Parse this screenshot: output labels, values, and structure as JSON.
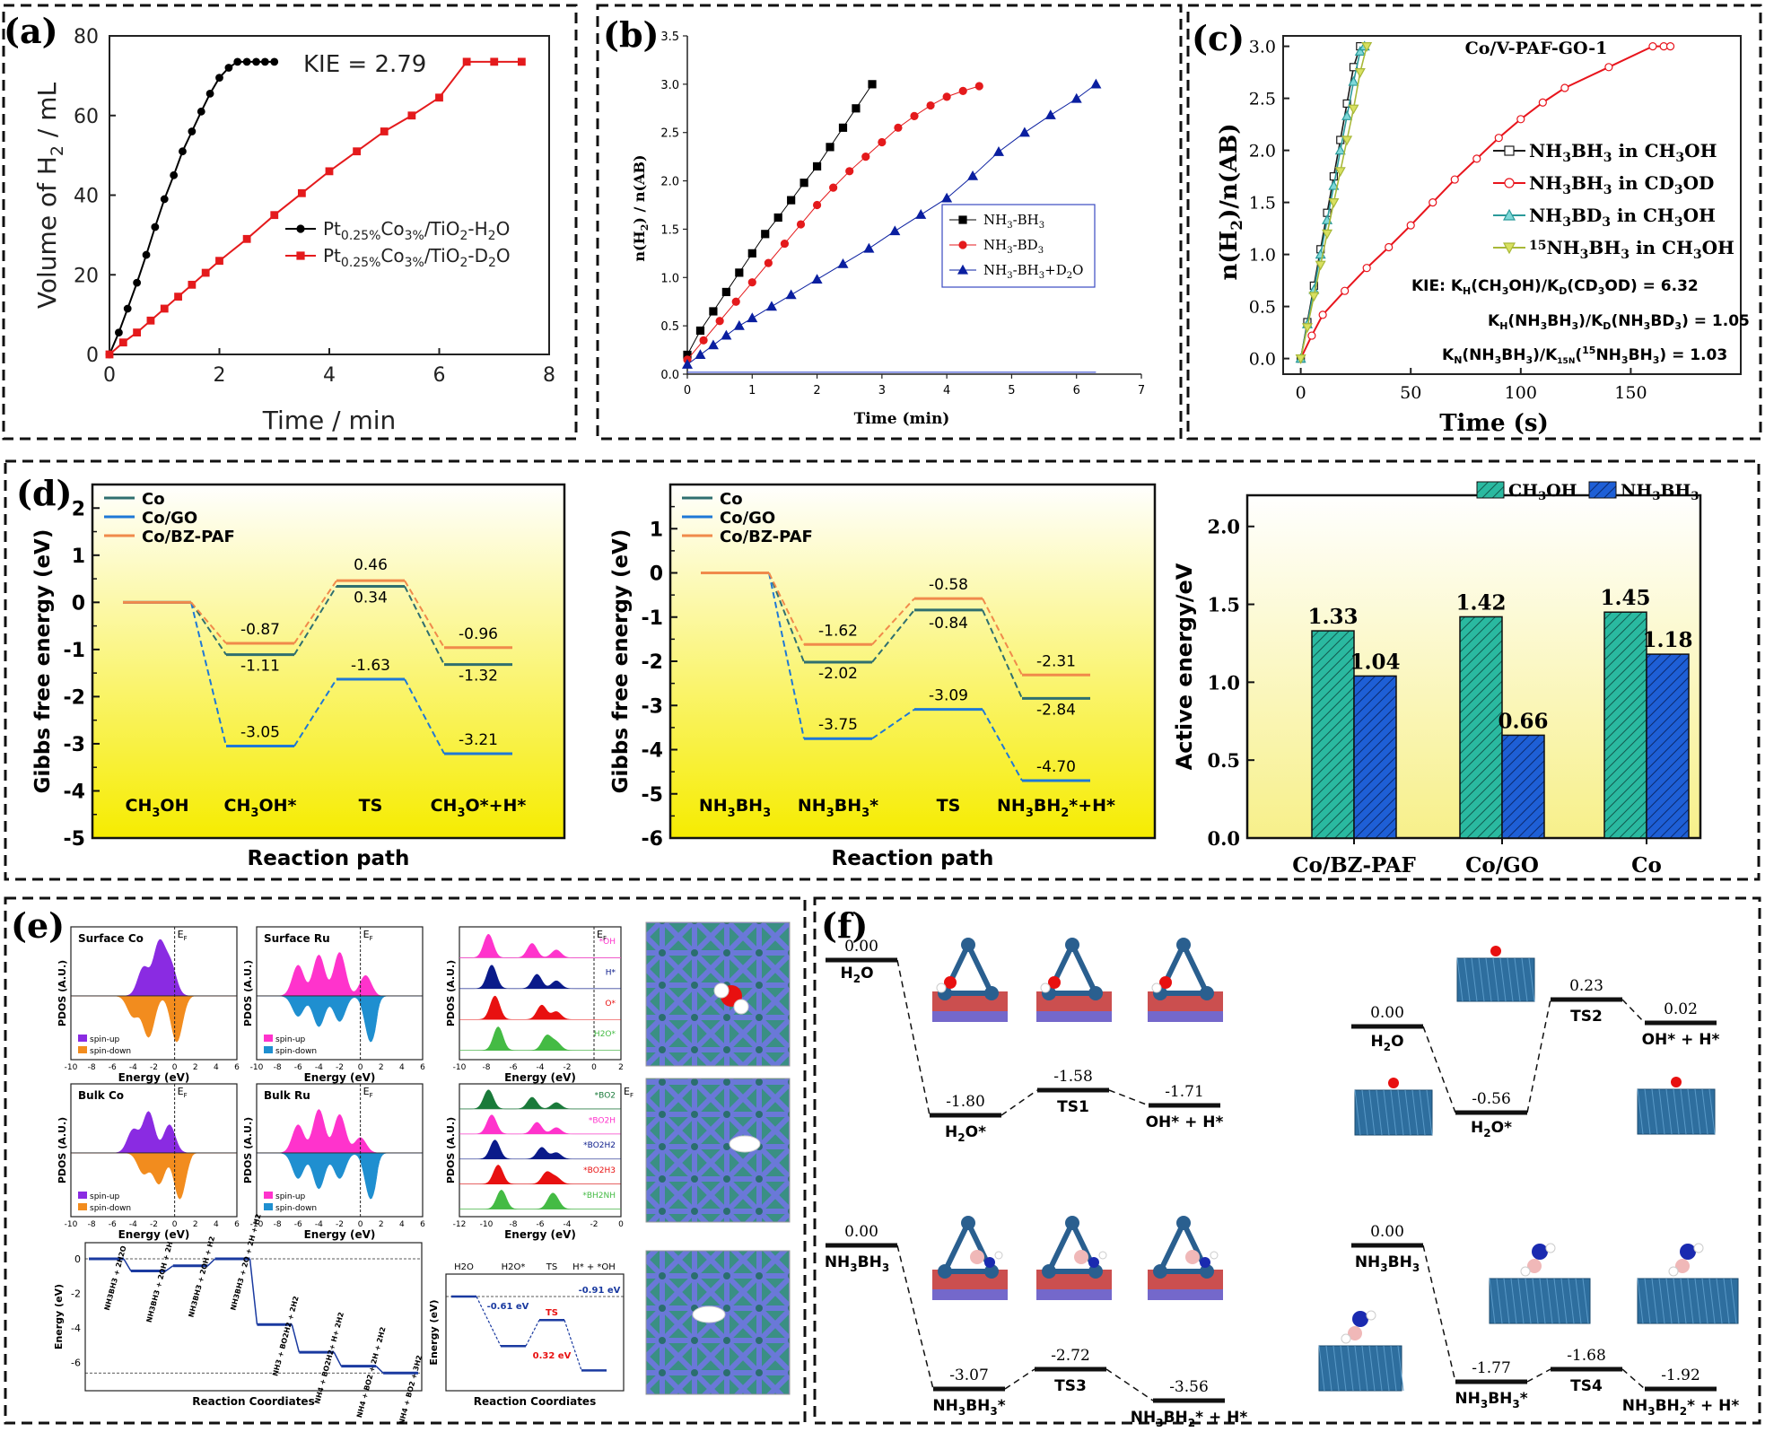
{
  "colors": {
    "black": "#000000",
    "red": "#e41a1c",
    "blue": "#0a1fa0",
    "teal": "#2a6e6e",
    "co": "#2f6f6f",
    "cogo": "#1e78d6",
    "cobz": "#f08a4b",
    "yellow_top": "#ffffff",
    "yellow_bot": "#f8ef00",
    "bar_ch3oh": "#2ab9a0",
    "bar_nh3bh3": "#1e5fd6",
    "purple": "#8a2be2",
    "orange": "#f28c1e",
    "magenta": "#ff33cc",
    "skyblue": "#1f8fd0",
    "green": "#44bb44"
  },
  "panels": {
    "a": {
      "label": "(a)"
    },
    "b": {
      "label": "(b)"
    },
    "c": {
      "label": "(c)"
    },
    "d": {
      "label": "(d)"
    },
    "e": {
      "label": "(e)"
    },
    "f": {
      "label": "(f)"
    }
  },
  "chart_data": [
    {
      "id": "a",
      "type": "line",
      "xlabel": "Time / min",
      "ylabel": "Volume of H2 / mL",
      "ylabel_parts": {
        "pre": "Volume of H",
        "sub": "2",
        "post": " / mL"
      },
      "xlim": [
        0,
        8
      ],
      "ylim": [
        0,
        80
      ],
      "xticks": [
        "0",
        "2",
        "4",
        "6",
        "8"
      ],
      "yticks": [
        "0",
        "20",
        "40",
        "60",
        "80"
      ],
      "annotation": "KIE = 2.79",
      "series": [
        {
          "name": "Pt0.25%Co3%/TiO2-H2O",
          "legend": {
            "pre": "Pt",
            "s1": "0.25%",
            "mid": "Co",
            "s2": "3%",
            "post": "/TiO",
            "s3": "2",
            "end": "-H",
            "s4": "2",
            "tail": "O"
          },
          "marker": "circle",
          "x": [
            0,
            0.17,
            0.33,
            0.5,
            0.67,
            0.83,
            1.0,
            1.17,
            1.33,
            1.5,
            1.67,
            1.83,
            2.0,
            2.17,
            2.33,
            2.5,
            2.67,
            2.83,
            3.0
          ],
          "y": [
            0,
            5.5,
            11.5,
            18,
            25,
            32,
            39,
            45,
            51,
            56,
            61,
            65.5,
            69.5,
            72,
            73.5,
            73.5,
            73.5,
            73.5,
            73.5
          ]
        },
        {
          "name": "Pt0.25%Co3%/TiO2-D2O",
          "legend": {
            "pre": "Pt",
            "s1": "0.25%",
            "mid": "Co",
            "s2": "3%",
            "post": "/TiO",
            "s3": "2",
            "end": "-D",
            "s4": "2",
            "tail": "O"
          },
          "marker": "square",
          "x": [
            0,
            0.25,
            0.5,
            0.75,
            1.0,
            1.25,
            1.5,
            1.75,
            2.0,
            2.5,
            3.0,
            3.5,
            4.0,
            4.5,
            5.0,
            5.5,
            6.0,
            6.5,
            7.0,
            7.5
          ],
          "y": [
            0,
            3,
            5.5,
            8.5,
            11.5,
            14.5,
            17.5,
            20.5,
            23.5,
            29,
            35,
            40.5,
            46,
            51,
            56,
            60,
            64.5,
            73.5,
            73.5,
            73.5
          ]
        }
      ]
    },
    {
      "id": "b",
      "type": "line",
      "xlabel": "Time (min)",
      "ylabel": "n(H2) / n(AB)",
      "xlim": [
        0,
        7
      ],
      "ylim": [
        0,
        3.5
      ],
      "xticks": [
        "0",
        "1",
        "2",
        "3",
        "4",
        "5",
        "6",
        "7"
      ],
      "yticks": [
        "0.0",
        "0.5",
        "1.0",
        "1.5",
        "2.0",
        "2.5",
        "3.0",
        "3.5"
      ],
      "series": [
        {
          "name": "NH3-BH3",
          "legend": {
            "a": "NH",
            "s": "3",
            "b": "-BH",
            "s2": "3"
          },
          "marker": "square",
          "x": [
            0,
            0.2,
            0.4,
            0.6,
            0.8,
            1.0,
            1.2,
            1.4,
            1.6,
            1.8,
            2.0,
            2.2,
            2.4,
            2.6,
            2.85
          ],
          "y": [
            0.2,
            0.45,
            0.65,
            0.85,
            1.05,
            1.25,
            1.45,
            1.62,
            1.8,
            1.98,
            2.15,
            2.35,
            2.55,
            2.75,
            3.0
          ]
        },
        {
          "name": "NH3-BD3",
          "legend": {
            "a": "NH",
            "s": "3",
            "b": "-BD",
            "s2": "3"
          },
          "marker": "circle",
          "x": [
            0,
            0.25,
            0.5,
            0.75,
            1.0,
            1.25,
            1.5,
            1.75,
            2.0,
            2.25,
            2.5,
            2.75,
            3.0,
            3.25,
            3.5,
            3.75,
            4.0,
            4.25,
            4.5
          ],
          "y": [
            0.15,
            0.35,
            0.55,
            0.75,
            0.95,
            1.15,
            1.35,
            1.55,
            1.75,
            1.93,
            2.1,
            2.25,
            2.4,
            2.55,
            2.67,
            2.78,
            2.87,
            2.93,
            2.98
          ]
        },
        {
          "name": "NH3-BH3+D2O",
          "legend": {
            "a": "NH",
            "s": "3",
            "b": "-BH",
            "s2": "3",
            "c": "+D",
            "s3": "2",
            "d": "O"
          },
          "marker": "triangle",
          "x": [
            0,
            0.2,
            0.4,
            0.6,
            0.8,
            1.0,
            1.3,
            1.6,
            2.0,
            2.4,
            2.8,
            3.2,
            3.6,
            4.0,
            4.4,
            4.8,
            5.2,
            5.6,
            6.0,
            6.3
          ],
          "y": [
            0.1,
            0.2,
            0.3,
            0.4,
            0.5,
            0.58,
            0.7,
            0.82,
            0.98,
            1.14,
            1.3,
            1.48,
            1.65,
            1.82,
            2.05,
            2.3,
            2.5,
            2.68,
            2.85,
            3.0
          ]
        }
      ]
    },
    {
      "id": "c",
      "type": "line",
      "title": "Co/V-PAF-GO-1",
      "xlabel": "Time (s)",
      "ylabel": "n(H2)/n(AB)",
      "xlim": [
        -8,
        200
      ],
      "ylim": [
        -0.15,
        3.1
      ],
      "xticks": [
        "0",
        "50",
        "100",
        "150"
      ],
      "xtick_vals": [
        0,
        50,
        100,
        150
      ],
      "yticks": [
        "0.0",
        "0.5",
        "1.0",
        "1.5",
        "2.0",
        "2.5",
        "3.0"
      ],
      "series": [
        {
          "name": "NH3BH3 in CH3OH",
          "legend": {
            "a": "NH",
            "s": "3",
            "b": "BH",
            "s2": "3",
            "c": " in CH",
            "s3": "3",
            "d": "OH"
          },
          "marker": "square",
          "x": [
            0,
            3,
            6,
            9,
            12,
            15,
            18,
            21,
            24,
            27
          ],
          "y": [
            0,
            0.35,
            0.7,
            1.05,
            1.4,
            1.75,
            2.1,
            2.45,
            2.8,
            3.0
          ]
        },
        {
          "name": "NH3BH3 in CD3OD",
          "legend": {
            "a": "NH",
            "s": "3",
            "b": "BH",
            "s2": "3",
            "c": " in CD",
            "s3": "3",
            "d": "OD"
          },
          "marker": "circle",
          "x": [
            0,
            5,
            10,
            20,
            30,
            40,
            50,
            60,
            70,
            80,
            90,
            100,
            110,
            120,
            140,
            160,
            165,
            168
          ],
          "y": [
            0,
            0.22,
            0.42,
            0.65,
            0.87,
            1.07,
            1.28,
            1.5,
            1.72,
            1.92,
            2.12,
            2.3,
            2.46,
            2.6,
            2.8,
            3.0,
            3.0,
            3.0
          ]
        },
        {
          "name": "NH3BD3 in CH3OH",
          "legend": {
            "a": "NH",
            "s": "3",
            "b": "BD",
            "s2": "3",
            "c": " in CH",
            "s3": "3",
            "d": "OH"
          },
          "marker": "triangle",
          "x": [
            0,
            3,
            6,
            9,
            12,
            15,
            18,
            21,
            24,
            27,
            29
          ],
          "y": [
            0,
            0.33,
            0.66,
            1.0,
            1.33,
            1.66,
            2.0,
            2.33,
            2.66,
            2.95,
            3.0
          ]
        },
        {
          "name": "15NH3BH3 in CH3OH",
          "legend": {
            "pre": "15",
            "a": "NH",
            "s": "3",
            "b": "BH",
            "s2": "3",
            "c": " in CH",
            "s3": "3",
            "d": "OH"
          },
          "marker": "tridown",
          "x": [
            0,
            3,
            6,
            9,
            12,
            15,
            18,
            21,
            24,
            27,
            30
          ],
          "y": [
            0,
            0.3,
            0.6,
            0.9,
            1.2,
            1.5,
            1.8,
            2.1,
            2.4,
            2.75,
            3.0
          ]
        }
      ],
      "notes": [
        "KIE: KH(CH3OH)/KD(CD3OD) = 6.32",
        "KH(NH3BH3)/KD(NH3BD3) = 1.05",
        "KN(NH3BH3)/K15N(15NH3BH3) = 1.03"
      ]
    },
    {
      "id": "d1",
      "type": "line",
      "ylabel": "Gibbs free energy (eV)",
      "xlabel": "Reaction path",
      "ylim": [
        -5,
        2.5
      ],
      "yticks": [
        "-5",
        "-4",
        "-3",
        "-2",
        "-1",
        "0",
        "1",
        "2"
      ],
      "categories": [
        "CH3OH",
        "CH3OH*",
        "TS",
        "CH3O*+H*"
      ],
      "series": [
        {
          "name": "Co",
          "values": [
            0,
            -1.11,
            0.34,
            -1.32
          ]
        },
        {
          "name": "Co/GO",
          "values": [
            0,
            -3.05,
            -1.63,
            -3.21
          ]
        },
        {
          "name": "Co/BZ-PAF",
          "values": [
            0,
            -0.87,
            0.46,
            -0.96
          ]
        }
      ]
    },
    {
      "id": "d2",
      "type": "line",
      "ylabel": "Gibbs free energy (eV)",
      "xlabel": "Reaction path",
      "ylim": [
        -6,
        2
      ],
      "yticks": [
        "-6",
        "-5",
        "-4",
        "-3",
        "-2",
        "-1",
        "0",
        "1"
      ],
      "categories": [
        "NH3BH3",
        "NH3BH3*",
        "TS",
        "NH3BH2*+H*"
      ],
      "series": [
        {
          "name": "Co",
          "values": [
            0,
            -2.02,
            -0.84,
            -2.84
          ]
        },
        {
          "name": "Co/GO",
          "values": [
            0,
            -3.75,
            -3.09,
            -4.7
          ]
        },
        {
          "name": "Co/BZ-PAF",
          "values": [
            0,
            -1.62,
            -0.58,
            -2.31
          ]
        }
      ]
    },
    {
      "id": "d3",
      "type": "bar",
      "ylabel": "Active energy/eV",
      "ylim": [
        0,
        2.2
      ],
      "yticks": [
        "0.0",
        "0.5",
        "1.0",
        "1.5",
        "2.0"
      ],
      "categories": [
        "Co/BZ-PAF",
        "Co/GO",
        "Co"
      ],
      "series": [
        {
          "name": "CH3OH",
          "values": [
            1.33,
            1.42,
            1.45
          ]
        },
        {
          "name": "NH3BH3",
          "values": [
            1.04,
            0.66,
            1.18
          ]
        }
      ]
    },
    {
      "id": "e-energy",
      "type": "line",
      "ylabel": "Energy (eV)",
      "xlabel": "Reaction Coordiates",
      "yticks": [
        "0",
        "-2",
        "-4",
        "-6"
      ],
      "categories": [
        "NH3BH3 + 2H2O",
        "NH3BH3 + 2OH + 2H",
        "NH3BH3 + 2OH + H2",
        "NH3BH3 + 2O + 2H + H2",
        "NH3 + BO2H2 + 2H2",
        "NH4 + BO2H2+ H+ 2H2",
        "NH4 + BO2 + 2H + 2H2",
        "NH4 + BO2 + 3H2"
      ],
      "values": [
        0,
        -0.7,
        -0.4,
        0,
        -3.8,
        -5.4,
        -6.2,
        -6.6
      ]
    },
    {
      "id": "e-path",
      "type": "line",
      "ylabel": "Energy (eV)",
      "xlabel": "Reaction Coordiates",
      "categories": [
        "H2O",
        "H2O*",
        "TS",
        "H* + *OH"
      ],
      "values": [
        0,
        -0.61,
        -0.29,
        -0.91
      ],
      "annotations": [
        "-0.61 eV",
        "-0.91 eV",
        "TS",
        "0.32 eV"
      ]
    },
    {
      "id": "f1",
      "type": "line",
      "categories": [
        "H2O",
        "H2O*",
        "TS1",
        "OH* + H*"
      ],
      "values": [
        0.0,
        -1.8,
        -1.58,
        -1.71
      ]
    },
    {
      "id": "f2",
      "type": "line",
      "categories": [
        "H2O",
        "H2O*",
        "TS2",
        "OH* + H*"
      ],
      "values": [
        0.0,
        -0.56,
        0.23,
        0.02
      ]
    },
    {
      "id": "f3",
      "type": "line",
      "categories": [
        "NH3BH3",
        "NH3BH3*",
        "TS3",
        "NH3BH2* + H*"
      ],
      "values": [
        0.0,
        -3.07,
        -2.72,
        -3.56
      ]
    },
    {
      "id": "f4",
      "type": "line",
      "categories": [
        "NH3BH3",
        "NH3BH3*",
        "TS4",
        "NH3BH2* + H*"
      ],
      "values": [
        0.0,
        -1.77,
        -1.68,
        -1.92
      ]
    }
  ],
  "e_pdos": {
    "titles": [
      "Surface Co",
      "Surface Ru",
      "Bulk Co",
      "Bulk Ru"
    ],
    "ef": "E",
    "ef_sub": "F",
    "ylabel": "PDOS (A.U.)",
    "xlabel": "Energy (eV)",
    "xticks": [
      "-10",
      "-8",
      "-6",
      "-4",
      "-2",
      "0",
      "2",
      "4",
      "6"
    ],
    "legend_up": "spin-up",
    "legend_down": "spin-down",
    "stack_top_labels": [
      "*OH",
      "H*",
      "O*",
      "H2O*"
    ],
    "stack_bottom_labels": [
      "*BO2",
      "*BO2H",
      "*BO2H2",
      "*BO2H3",
      "*BH2NH"
    ],
    "stack_xticks_top": [
      "-10",
      "-8",
      "-6",
      "-4",
      "-2",
      "0",
      "2"
    ],
    "stack_xticks_bot": [
      "-12",
      "-10",
      "-8",
      "-6",
      "-4",
      "-2",
      "0"
    ],
    "stack_ylabel": "PDOS (A.U.)",
    "stack_xlabel": "Energy (eV)"
  }
}
